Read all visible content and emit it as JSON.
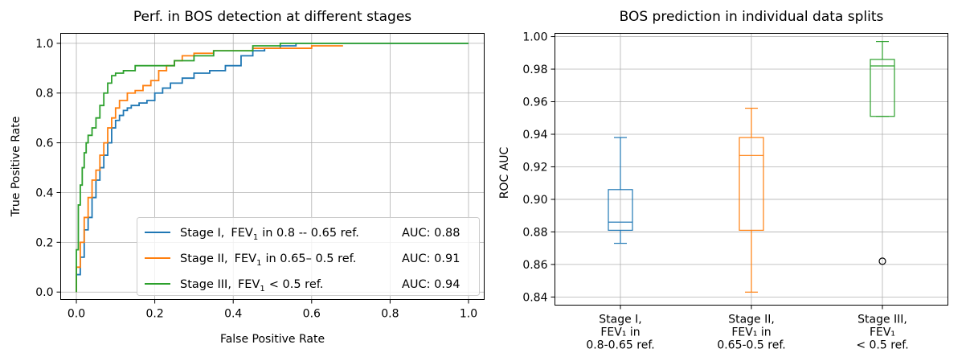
{
  "chart_data": [
    {
      "type": "line",
      "title": "Perf. in BOS detection at different stages",
      "xlabel": "False Positive Rate",
      "ylabel": "True Positive Rate",
      "xlim": [
        -0.04,
        1.04
      ],
      "ylim": [
        -0.03,
        1.04
      ],
      "xticks": [
        "0.0",
        "0.2",
        "0.4",
        "0.6",
        "0.8",
        "1.0"
      ],
      "yticks": [
        "0.0",
        "0.2",
        "0.4",
        "0.6",
        "0.8",
        "1.0"
      ],
      "grid": true,
      "legend_position": "lower-right",
      "series": [
        {
          "name": "Stage   I,  FEV1 in 0.8 -- 0.65 ref.",
          "legend_stage": "Stage   I,",
          "legend_range": "in 0.8 -- 0.65 ref.",
          "auc_label": "AUC: 0.88",
          "color": "#1f77b4",
          "x": [
            0.0,
            0.0,
            0.01,
            0.01,
            0.02,
            0.02,
            0.03,
            0.03,
            0.04,
            0.04,
            0.05,
            0.05,
            0.06,
            0.06,
            0.07,
            0.07,
            0.08,
            0.08,
            0.09,
            0.09,
            0.1,
            0.1,
            0.11,
            0.11,
            0.12,
            0.12,
            0.13,
            0.13,
            0.14,
            0.14,
            0.16,
            0.16,
            0.18,
            0.18,
            0.2,
            0.2,
            0.22,
            0.22,
            0.24,
            0.24,
            0.27,
            0.27,
            0.3,
            0.3,
            0.34,
            0.34,
            0.38,
            0.38,
            0.42,
            0.42,
            0.45,
            0.45,
            0.48,
            0.48,
            0.52,
            0.52,
            0.56,
            0.56,
            1.0
          ],
          "y": [
            0.0,
            0.07,
            0.07,
            0.14,
            0.14,
            0.25,
            0.25,
            0.3,
            0.3,
            0.38,
            0.38,
            0.45,
            0.45,
            0.5,
            0.5,
            0.55,
            0.55,
            0.6,
            0.6,
            0.66,
            0.66,
            0.69,
            0.69,
            0.71,
            0.71,
            0.73,
            0.73,
            0.74,
            0.74,
            0.75,
            0.75,
            0.76,
            0.76,
            0.77,
            0.77,
            0.8,
            0.8,
            0.82,
            0.82,
            0.84,
            0.84,
            0.86,
            0.86,
            0.88,
            0.88,
            0.89,
            0.89,
            0.91,
            0.91,
            0.95,
            0.95,
            0.97,
            0.97,
            0.98,
            0.98,
            0.99,
            0.99,
            1.0,
            1.0
          ]
        },
        {
          "name": "Stage  II,  FEV1 in 0.65– 0.5  ref.",
          "legend_stage": "Stage  II,",
          "legend_range": "in 0.65– 0.5  ref.",
          "auc_label": "AUC: 0.91",
          "color": "#ff7f0e",
          "x": [
            0.0,
            0.0,
            0.01,
            0.01,
            0.02,
            0.02,
            0.03,
            0.03,
            0.04,
            0.04,
            0.05,
            0.05,
            0.06,
            0.06,
            0.07,
            0.07,
            0.08,
            0.08,
            0.09,
            0.09,
            0.1,
            0.1,
            0.11,
            0.11,
            0.13,
            0.13,
            0.15,
            0.15,
            0.17,
            0.17,
            0.19,
            0.19,
            0.21,
            0.21,
            0.23,
            0.23,
            0.25,
            0.25,
            0.27,
            0.27,
            0.3,
            0.3,
            0.35,
            0.35,
            0.4,
            0.4,
            0.45,
            0.45,
            0.52,
            0.52,
            0.6,
            0.6,
            0.68
          ],
          "y": [
            0.0,
            0.1,
            0.1,
            0.2,
            0.2,
            0.3,
            0.3,
            0.38,
            0.38,
            0.45,
            0.45,
            0.49,
            0.49,
            0.55,
            0.55,
            0.6,
            0.6,
            0.66,
            0.66,
            0.7,
            0.7,
            0.74,
            0.74,
            0.77,
            0.77,
            0.8,
            0.8,
            0.81,
            0.81,
            0.83,
            0.83,
            0.85,
            0.85,
            0.89,
            0.89,
            0.91,
            0.91,
            0.93,
            0.93,
            0.95,
            0.95,
            0.96,
            0.96,
            0.97,
            0.97,
            0.97,
            0.97,
            0.98,
            0.98,
            0.98,
            0.98,
            0.99,
            0.99
          ]
        },
        {
          "name": "Stage III,  FEV1 <  0.5 ref.",
          "legend_stage": "Stage III,",
          "legend_range": "<  0.5 ref.",
          "auc_label": "AUC: 0.94",
          "color": "#2ca02c",
          "x": [
            0.0,
            0.0,
            0.005,
            0.005,
            0.01,
            0.01,
            0.015,
            0.015,
            0.02,
            0.02,
            0.025,
            0.025,
            0.03,
            0.03,
            0.04,
            0.04,
            0.05,
            0.05,
            0.06,
            0.06,
            0.07,
            0.07,
            0.08,
            0.08,
            0.09,
            0.09,
            0.1,
            0.1,
            0.12,
            0.12,
            0.15,
            0.15,
            0.2,
            0.2,
            0.25,
            0.25,
            0.3,
            0.3,
            0.35,
            0.35,
            0.4,
            0.4,
            0.45,
            0.45,
            0.52,
            0.52,
            1.0
          ],
          "y": [
            0.0,
            0.17,
            0.17,
            0.35,
            0.35,
            0.43,
            0.43,
            0.5,
            0.5,
            0.56,
            0.56,
            0.6,
            0.6,
            0.63,
            0.63,
            0.66,
            0.66,
            0.7,
            0.7,
            0.75,
            0.75,
            0.8,
            0.8,
            0.84,
            0.84,
            0.87,
            0.87,
            0.88,
            0.88,
            0.89,
            0.89,
            0.91,
            0.91,
            0.91,
            0.91,
            0.93,
            0.93,
            0.95,
            0.95,
            0.97,
            0.97,
            0.97,
            0.97,
            0.99,
            0.99,
            1.0,
            1.0
          ]
        }
      ]
    },
    {
      "type": "box",
      "title": "BOS prediction in individual data splits",
      "xlabel": "",
      "ylabel": "ROC AUC",
      "ylim": [
        0.835,
        1.002
      ],
      "yticks": [
        "0.84",
        "0.86",
        "0.88",
        "0.90",
        "0.92",
        "0.94",
        "0.96",
        "0.98",
        "1.00"
      ],
      "grid": true,
      "categories": [
        [
          "Stage   I,",
          "FEV₁ in",
          "0.8-0.65 ref."
        ],
        [
          "Stage  II,",
          "FEV₁ in",
          "0.65-0.5  ref."
        ],
        [
          "Stage III,",
          "FEV₁",
          "< 0.5 ref."
        ]
      ],
      "boxes": [
        {
          "whislo": 0.873,
          "q1": 0.881,
          "med": 0.886,
          "q3": 0.906,
          "whishi": 0.938,
          "fliers": [],
          "color": "#1f77b4"
        },
        {
          "whislo": 0.843,
          "q1": 0.881,
          "med": 0.927,
          "q3": 0.938,
          "whishi": 0.956,
          "fliers": [],
          "color": "#ff7f0e"
        },
        {
          "whislo": 0.951,
          "q1": 0.951,
          "med": 0.982,
          "q3": 0.986,
          "whishi": 0.997,
          "fliers": [
            0.862
          ],
          "color": "#2ca02c"
        }
      ]
    }
  ]
}
